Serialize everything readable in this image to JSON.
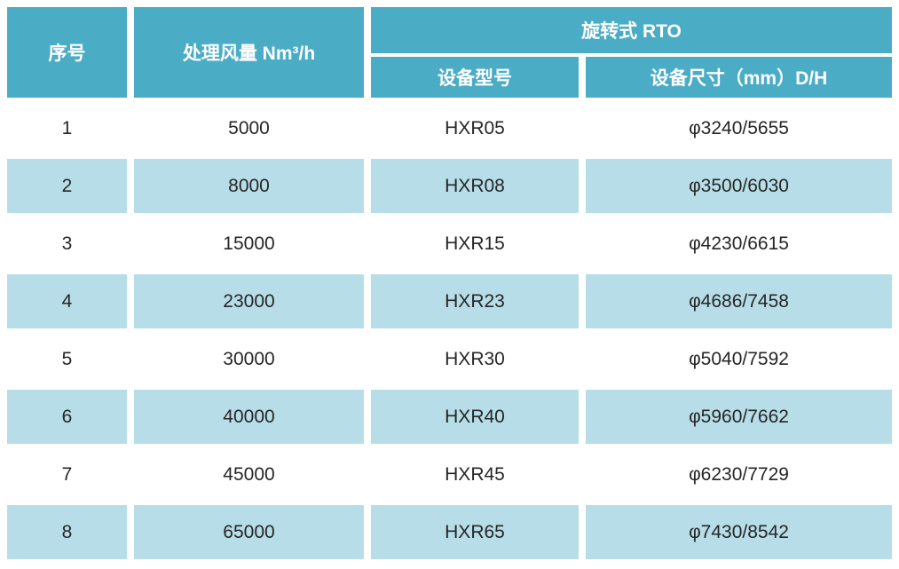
{
  "palette": {
    "header_bg": "#4BACC6",
    "header_fg": "#FFFFFF",
    "band_bg": "#B7DEE8",
    "row_bg": "#FFFFFF",
    "body_fg": "#262626"
  },
  "table": {
    "headers": {
      "seq": "序号",
      "airflow": "处理风量 Nm³/h",
      "group": "旋转式 RTO",
      "model": "设备型号",
      "size": "设备尺寸（mm）D/H"
    },
    "rows": [
      [
        "1",
        "5000",
        "HXR05",
        "φ3240/5655"
      ],
      [
        "2",
        "8000",
        "HXR08",
        "φ3500/6030"
      ],
      [
        "3",
        "15000",
        "HXR15",
        "φ4230/6615"
      ],
      [
        "4",
        "23000",
        "HXR23",
        "φ4686/7458"
      ],
      [
        "5",
        "30000",
        "HXR30",
        "φ5040/7592"
      ],
      [
        "6",
        "40000",
        "HXR40",
        "φ5960/7662"
      ],
      [
        "7",
        "45000",
        "HXR45",
        "φ6230/7729"
      ],
      [
        "8",
        "65000",
        "HXR65",
        "φ7430/8542"
      ]
    ]
  }
}
